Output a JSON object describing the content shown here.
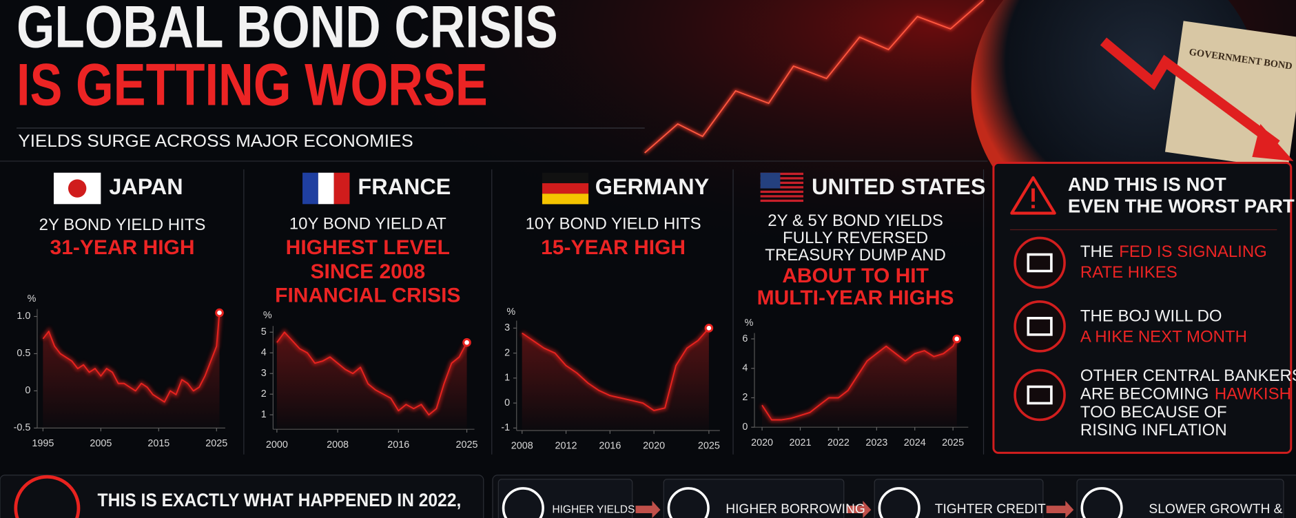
{
  "header": {
    "title_lines": [
      "GLOBAL BOND CRISIS",
      "IS GETTING WORSE"
    ],
    "subtitle": "YIELDS SURGE ACROSS MAJOR ECONOMIES"
  },
  "chart_data": [
    {
      "type": "line",
      "country": "JAPAN",
      "text_lines": [
        "2Y BOND YIELD HITS"
      ],
      "highlight_lines": [
        "31-YEAR HIGH"
      ],
      "ylabel": "%",
      "color": "#e8231f",
      "x": [
        1995,
        1996,
        1997,
        1998,
        1999,
        2000,
        2001,
        2002,
        2003,
        2004,
        2005,
        2006,
        2007,
        2008,
        2009,
        2010,
        2011,
        2012,
        2013,
        2014,
        2015,
        2016,
        2017,
        2018,
        2019,
        2020,
        2021,
        2022,
        2023,
        2024,
        2025,
        2025.5
      ],
      "values": [
        0.7,
        0.8,
        0.6,
        0.5,
        0.45,
        0.4,
        0.3,
        0.35,
        0.25,
        0.3,
        0.2,
        0.3,
        0.25,
        0.1,
        0.1,
        0.05,
        0.0,
        0.1,
        0.05,
        -0.05,
        -0.1,
        -0.15,
        0.0,
        -0.05,
        0.15,
        0.1,
        0.0,
        0.05,
        0.2,
        0.4,
        0.6,
        1.05
      ],
      "xlim": [
        1994,
        2026.5
      ],
      "xticks": [
        1995,
        2005,
        2015,
        2025
      ],
      "ylim": [
        -0.5,
        1.1
      ],
      "yticks": [
        -0.5,
        0,
        0.5,
        {
          "value": 1,
          "label": "1.0"
        }
      ]
    },
    {
      "type": "line",
      "country": "FRANCE",
      "text_lines": [
        "10Y BOND YIELD AT"
      ],
      "highlight_lines": [
        "HIGHEST LEVEL",
        "SINCE 2008",
        "FINANCIAL CRISIS"
      ],
      "ylabel": "%",
      "color": "#e8231f",
      "x": [
        2000,
        2001,
        2002,
        2003,
        2004,
        2005,
        2006,
        2007,
        2008,
        2009,
        2010,
        2011,
        2012,
        2013,
        2014,
        2015,
        2016,
        2017,
        2018,
        2019,
        2020,
        2021,
        2022,
        2023,
        2024,
        2025
      ],
      "values": [
        4.5,
        5.0,
        4.6,
        4.2,
        4.0,
        3.5,
        3.6,
        3.8,
        3.5,
        3.2,
        3.0,
        3.3,
        2.5,
        2.2,
        2.0,
        1.8,
        1.2,
        1.5,
        1.3,
        1.5,
        1.0,
        1.3,
        2.5,
        3.5,
        3.8,
        4.5
      ],
      "xlim": [
        1999.5,
        2026
      ],
      "xticks": [
        2000,
        2008,
        2016,
        2025
      ],
      "ylim": [
        0.3,
        5.3
      ],
      "yticks": [
        1,
        2,
        3,
        4,
        5
      ]
    },
    {
      "type": "line",
      "country": "GERMANY",
      "text_lines": [
        "10Y BOND YIELD HITS"
      ],
      "highlight_lines": [
        "15-YEAR HIGH"
      ],
      "ylabel": "%",
      "color": "#e8231f",
      "x": [
        2008,
        2009,
        2010,
        2011,
        2012,
        2013,
        2014,
        2015,
        2016,
        2017,
        2018,
        2019,
        2020,
        2021,
        2022,
        2023,
        2024,
        2025
      ],
      "values": [
        2.8,
        2.5,
        2.2,
        2.0,
        1.5,
        1.2,
        0.8,
        0.5,
        0.3,
        0.2,
        0.1,
        0.0,
        -0.3,
        -0.2,
        1.5,
        2.2,
        2.5,
        3.0
      ],
      "xlim": [
        2007.5,
        2026
      ],
      "xticks": [
        2008,
        2012,
        2016,
        2020,
        2025
      ],
      "ylim": [
        -1.1,
        3.3
      ],
      "yticks": [
        -1,
        0,
        1,
        2,
        3
      ]
    },
    {
      "type": "line",
      "country": "UNITED STATES",
      "text_lines": [
        "2Y & 5Y BOND YIELDS",
        "FULLY REVERSED",
        "TREASURY DUMP AND"
      ],
      "highlight_lines": [
        "ABOUT TO HIT",
        "MULTI-YEAR HIGHS"
      ],
      "ylabel": "%",
      "color": "#e8231f",
      "x": [
        2020,
        2020.25,
        2020.5,
        2020.75,
        2021,
        2021.25,
        2021.5,
        2021.75,
        2022,
        2022.25,
        2022.5,
        2022.75,
        2023,
        2023.25,
        2023.5,
        2023.75,
        2024,
        2024.25,
        2024.5,
        2024.75,
        2025,
        2025.1
      ],
      "values": [
        1.5,
        0.5,
        0.5,
        0.6,
        0.8,
        1.0,
        1.5,
        2.0,
        2.0,
        2.5,
        3.5,
        4.5,
        5.0,
        5.5,
        5.0,
        4.5,
        5.0,
        5.2,
        4.8,
        5.0,
        5.5,
        6.0
      ],
      "xlim": [
        2019.8,
        2025.4
      ],
      "xticks": [
        2020,
        2021,
        2022,
        2023,
        2024,
        2025
      ],
      "ylim": [
        0,
        6.4
      ],
      "yticks": [
        0,
        2,
        4,
        6
      ]
    }
  ],
  "warning": {
    "title_lines": [
      "AND THIS IS NOT",
      "EVEN THE WORST PART"
    ],
    "items": [
      {
        "lines": [
          [
            {
              "text": "THE"
            },
            {
              "text": "FED IS SIGNALING",
              "highlight": true
            }
          ],
          [
            {
              "text": "RATE HIKES",
              "highlight": true
            }
          ]
        ]
      },
      {
        "lines": [
          [
            {
              "text": "THE BOJ WILL DO"
            }
          ],
          [
            {
              "text": "A HIKE NEXT MONTH",
              "highlight": true
            }
          ]
        ]
      },
      {
        "lines": [
          [
            {
              "text": "OTHER CENTRAL BANKERS"
            }
          ],
          [
            {
              "text": "ARE BECOMING"
            },
            {
              "text": "HAWKISH",
              "highlight": true
            }
          ],
          [
            {
              "text": "TOO BECAUSE OF"
            }
          ],
          [
            {
              "text": "RISING INFLATION"
            }
          ]
        ]
      }
    ]
  },
  "footer": {
    "note": "THIS IS EXACTLY WHAT HAPPENED IN 2022,",
    "steps": [
      "HIGHER YIELDS",
      "HIGHER BORROWING",
      "TIGHTER CREDIT",
      "SLOWER GROWTH &"
    ]
  }
}
